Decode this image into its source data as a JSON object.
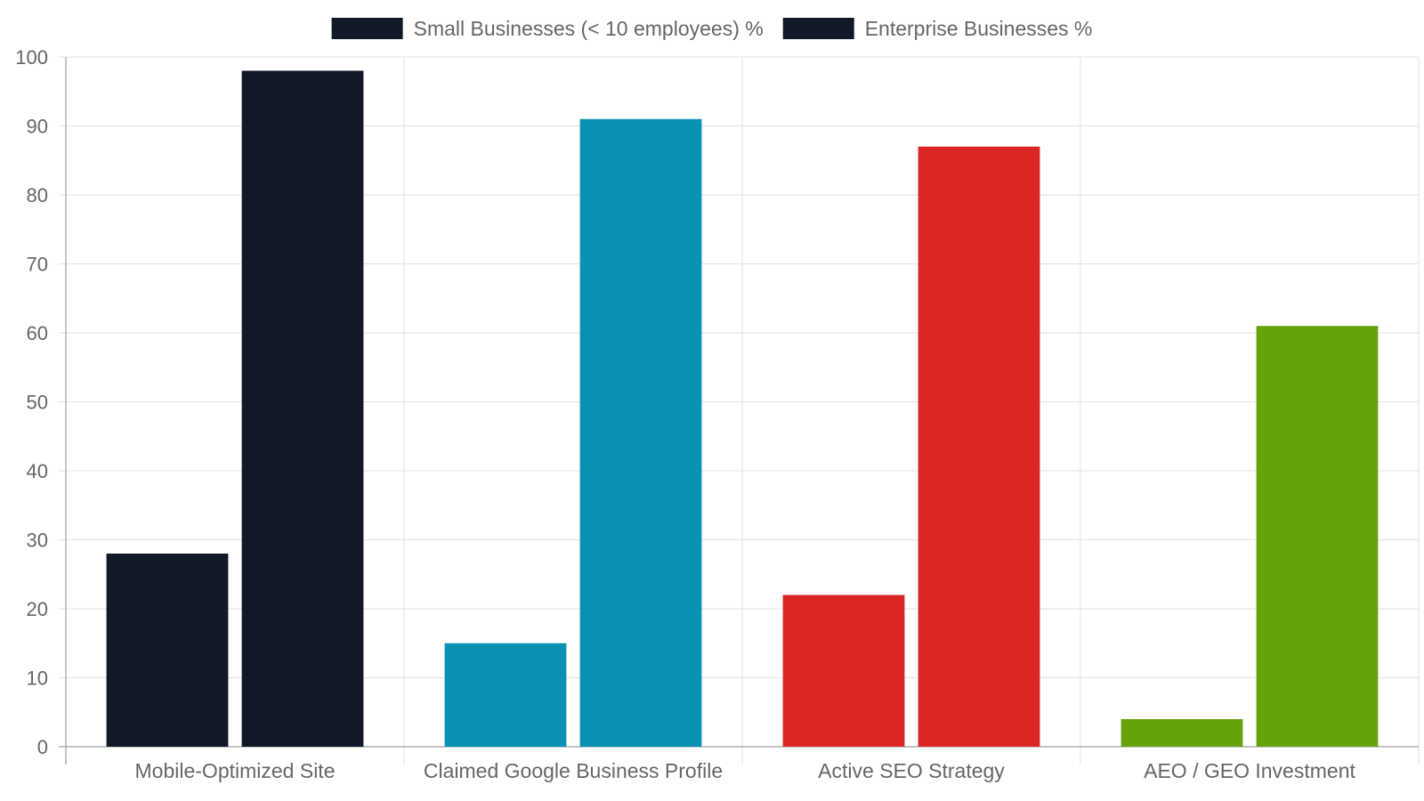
{
  "chart_data": {
    "type": "bar",
    "categories": [
      "Mobile-Optimized Site",
      "Claimed Google Business Profile",
      "Active SEO Strategy",
      "AEO / GEO Investment"
    ],
    "series": [
      {
        "name": "Small Businesses (< 10 employees) %",
        "values": [
          28,
          15,
          22,
          4
        ]
      },
      {
        "name": "Enterprise Businesses %",
        "values": [
          98,
          91,
          87,
          61
        ]
      }
    ],
    "bar_colors": [
      "#111827",
      "#0891b2",
      "#dc2626",
      "#65a30d"
    ],
    "legend_color": "#111827",
    "ylim": [
      0,
      100
    ],
    "yticks": [
      0,
      10,
      20,
      30,
      40,
      50,
      60,
      70,
      80,
      90,
      100
    ],
    "grid": true,
    "legend_position": "top"
  }
}
